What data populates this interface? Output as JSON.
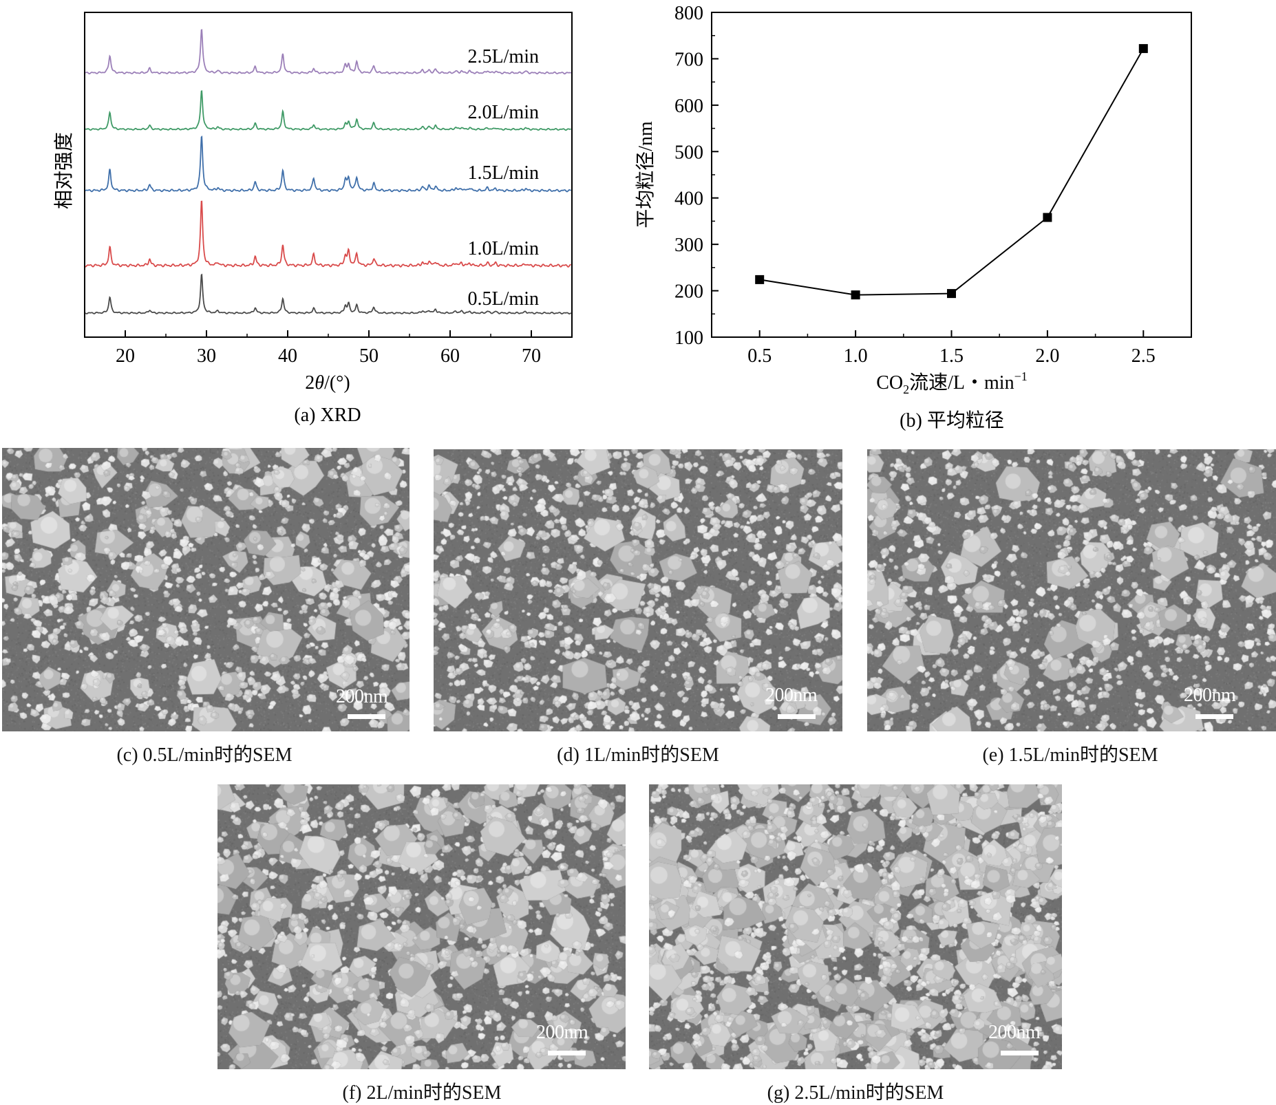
{
  "chart_data": [
    {
      "panel": "a",
      "type": "line",
      "caption": "(a) XRD",
      "xlabel_prefix": "2",
      "xlabel_var": "θ",
      "xlabel_suffix": "/(°)",
      "ylabel": "相对强度",
      "xlim": [
        15,
        75
      ],
      "xticks": [
        20,
        30,
        40,
        50,
        60,
        70
      ],
      "y_ticks_labeled": false,
      "peaks_2theta": [
        18.1,
        23.0,
        29.4,
        31.4,
        36.0,
        39.4,
        43.2,
        47.1,
        47.5,
        48.5,
        50.6,
        56.6,
        57.4,
        58.2,
        60.7,
        61.4,
        62.4,
        64.6,
        65.6,
        69.3
      ],
      "series": [
        {
          "name": "0.5L/min",
          "color": "#4a4a4a",
          "peak_heights": [
            0.42,
            0.08,
            1.0,
            0.06,
            0.14,
            0.38,
            0.12,
            0.18,
            0.24,
            0.2,
            0.16,
            0.06,
            0.07,
            0.1,
            0.05,
            0.05,
            0.04,
            0.05,
            0.04,
            0.04
          ]
        },
        {
          "name": "1.0L/min",
          "color": "#d94a4a",
          "peak_heights": [
            0.28,
            0.1,
            1.0,
            0.05,
            0.14,
            0.32,
            0.17,
            0.15,
            0.21,
            0.18,
            0.11,
            0.05,
            0.07,
            0.06,
            0.04,
            0.04,
            0.04,
            0.04,
            0.04,
            0.03
          ]
        },
        {
          "name": "1.5L/min",
          "color": "#3f6faa",
          "peak_heights": [
            0.38,
            0.11,
            1.0,
            0.05,
            0.16,
            0.37,
            0.23,
            0.2,
            0.23,
            0.25,
            0.13,
            0.07,
            0.09,
            0.08,
            0.05,
            0.04,
            0.05,
            0.05,
            0.04,
            0.04
          ]
        },
        {
          "name": "2.0L/min",
          "color": "#3f9a66",
          "peak_heights": [
            0.44,
            0.1,
            1.0,
            0.06,
            0.15,
            0.45,
            0.12,
            0.12,
            0.2,
            0.26,
            0.16,
            0.06,
            0.07,
            0.09,
            0.05,
            0.05,
            0.04,
            0.04,
            0.04,
            0.04
          ]
        },
        {
          "name": "2.5L/min",
          "color": "#9b7fb8",
          "peak_heights": [
            0.39,
            0.1,
            1.0,
            0.05,
            0.14,
            0.42,
            0.1,
            0.17,
            0.19,
            0.25,
            0.16,
            0.06,
            0.06,
            0.08,
            0.04,
            0.04,
            0.04,
            0.05,
            0.04,
            0.04
          ]
        }
      ]
    },
    {
      "panel": "b",
      "type": "line",
      "caption": "(b) 平均粒径",
      "xlabel_main": "CO",
      "xlabel_sub": "2",
      "xlabel_rest": "流速/L・min",
      "xlabel_sup": "−1",
      "ylabel": "平均粒径/nm",
      "xlim": [
        0.25,
        2.75
      ],
      "ylim": [
        100,
        800
      ],
      "xticks": [
        "0.5",
        "1.0",
        "1.5",
        "2.0",
        "2.5"
      ],
      "yticks": [
        "100",
        "200",
        "300",
        "400",
        "500",
        "600",
        "700",
        "800"
      ],
      "x": [
        0.5,
        1.0,
        1.5,
        2.0,
        2.5
      ],
      "y": [
        224,
        191,
        194,
        358,
        722
      ],
      "marker": "square",
      "color": "#000000"
    }
  ],
  "sem_panels": [
    {
      "id": "c",
      "caption": "(c) 0.5L/min时的SEM",
      "scalebar": "200nm",
      "density": 1.0,
      "large_fraction": 0.08
    },
    {
      "id": "d",
      "caption": "(d) 1L/min时的SEM",
      "scalebar": "200nm",
      "density": 1.15,
      "large_fraction": 0.05
    },
    {
      "id": "e",
      "caption": "(e) 1.5L/min时的SEM",
      "scalebar": "200nm",
      "density": 1.0,
      "large_fraction": 0.06
    },
    {
      "id": "f",
      "caption": "(f) 2L/min时的SEM",
      "scalebar": "200nm",
      "density": 1.05,
      "large_fraction": 0.14
    },
    {
      "id": "g",
      "caption": "(g) 2.5L/min时的SEM",
      "scalebar": "200nm",
      "density": 1.6,
      "large_fraction": 0.18
    }
  ]
}
